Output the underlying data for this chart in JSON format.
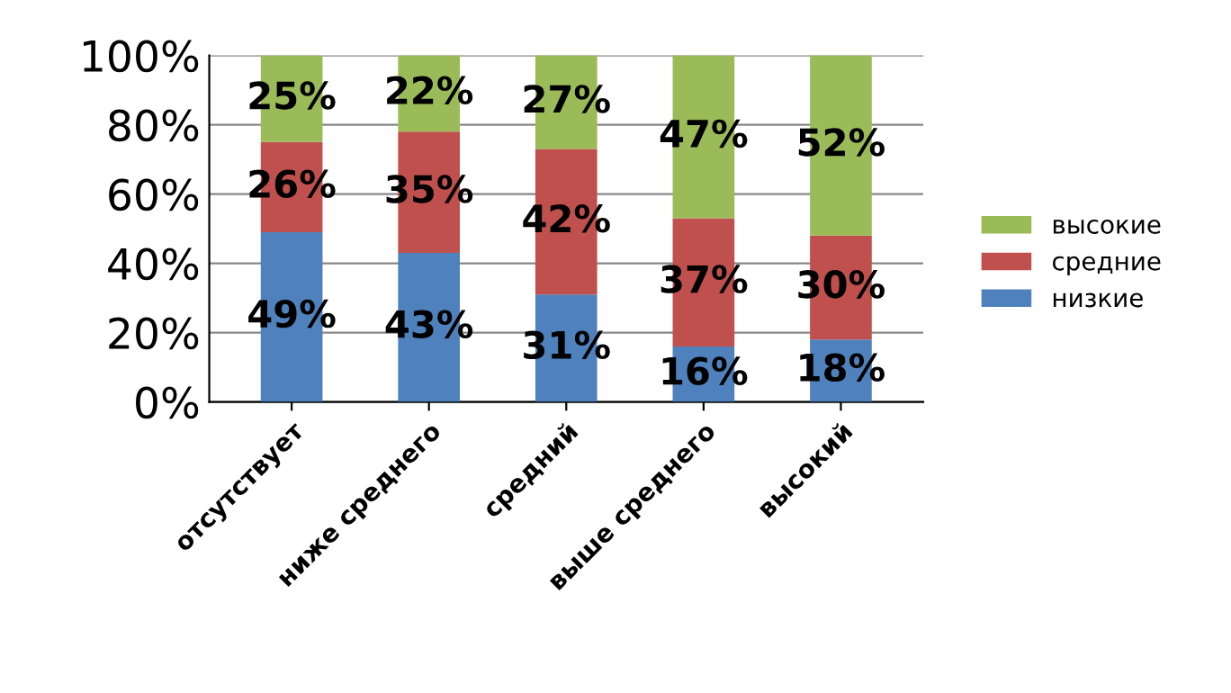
{
  "chart_data": {
    "type": "bar",
    "stacked": true,
    "categories": [
      "отсутствует",
      "ниже среднего",
      "средний",
      "выше среднего",
      "высокий"
    ],
    "series": [
      {
        "name": "низкие",
        "color": "#4f81bd",
        "values": [
          49,
          43,
          31,
          16,
          18
        ],
        "value_labels": [
          "49%",
          "43%",
          "31%",
          "16%",
          "18%"
        ]
      },
      {
        "name": "средние",
        "color": "#c0504d",
        "values": [
          26,
          35,
          42,
          37,
          30
        ],
        "value_labels": [
          "26%",
          "35%",
          "42%",
          "37%",
          "30%"
        ]
      },
      {
        "name": "высокие",
        "color": "#9bbb59",
        "values": [
          25,
          22,
          27,
          47,
          52
        ],
        "value_labels": [
          "25%",
          "22%",
          "27%",
          "47%",
          "52%"
        ]
      }
    ],
    "ylim": [
      0,
      100
    ],
    "yticks": [
      {
        "value": 0,
        "label": "0%"
      },
      {
        "value": 20,
        "label": "20%"
      },
      {
        "value": 40,
        "label": "40%"
      },
      {
        "value": 60,
        "label": "60%"
      },
      {
        "value": 80,
        "label": "80%"
      },
      {
        "value": 100,
        "label": "100%"
      }
    ],
    "grid": "y",
    "legend": "right"
  }
}
